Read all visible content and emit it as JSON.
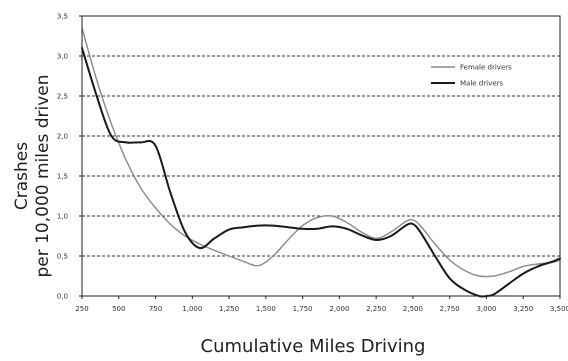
{
  "chart_data": {
    "type": "line",
    "title": "",
    "xlabel": "Cumulative Miles Driving",
    "ylabel_line1": "Crashes",
    "ylabel_line2": "per 10,000 miles driven",
    "xlim": [
      250,
      3500
    ],
    "ylim": [
      0,
      3.5
    ],
    "x_ticks": [
      250,
      500,
      750,
      1000,
      1250,
      1500,
      1750,
      2000,
      2250,
      2500,
      2750,
      3000,
      3250,
      3500
    ],
    "x_tick_labels": [
      "250",
      "500",
      "750",
      "1,000",
      "1,250",
      "1,500",
      "1,750",
      "2,000",
      "2,250",
      "2,500",
      "2,750",
      "3,000",
      "3,250",
      "3,500"
    ],
    "y_ticks": [
      0,
      0.5,
      1.0,
      1.5,
      2.0,
      2.5,
      3.0,
      3.5
    ],
    "y_tick_labels": [
      "0,0",
      "0,5",
      "1,0",
      "1,5",
      "2,0",
      "2,5",
      "3,0",
      "3,5"
    ],
    "grid": "horizontal dashed",
    "legend_position": "top-right",
    "series": [
      {
        "name": "Female drivers",
        "color": "#8a8a8a",
        "width": 1.4,
        "x": [
          250,
          350,
          450,
          550,
          650,
          750,
          850,
          950,
          1050,
          1150,
          1250,
          1350,
          1450,
          1550,
          1650,
          1750,
          1850,
          1950,
          2050,
          2150,
          2250,
          2350,
          2450,
          2500,
          2550,
          2650,
          2750,
          2850,
          2950,
          3050,
          3150,
          3250,
          3350,
          3450,
          3500
        ],
        "values": [
          3.35,
          2.7,
          2.15,
          1.7,
          1.35,
          1.1,
          0.9,
          0.75,
          0.65,
          0.57,
          0.5,
          0.43,
          0.38,
          0.5,
          0.7,
          0.88,
          0.98,
          1.0,
          0.92,
          0.8,
          0.72,
          0.8,
          0.93,
          0.95,
          0.88,
          0.65,
          0.45,
          0.32,
          0.25,
          0.25,
          0.3,
          0.37,
          0.4,
          0.42,
          0.45
        ]
      },
      {
        "name": "Male drivers",
        "color": "#1a1a1a",
        "width": 2.0,
        "x": [
          250,
          350,
          450,
          550,
          650,
          750,
          850,
          950,
          1050,
          1150,
          1250,
          1350,
          1450,
          1550,
          1650,
          1750,
          1850,
          1950,
          2050,
          2150,
          2250,
          2350,
          2450,
          2500,
          2550,
          2650,
          2750,
          2850,
          2950,
          3000,
          3050,
          3150,
          3250,
          3350,
          3450,
          3500
        ],
        "values": [
          3.1,
          2.5,
          2.0,
          1.92,
          1.92,
          1.88,
          1.3,
          0.8,
          0.6,
          0.72,
          0.83,
          0.86,
          0.88,
          0.88,
          0.86,
          0.84,
          0.84,
          0.87,
          0.84,
          0.76,
          0.7,
          0.75,
          0.88,
          0.9,
          0.8,
          0.5,
          0.22,
          0.08,
          0.0,
          0.0,
          0.02,
          0.15,
          0.28,
          0.37,
          0.43,
          0.47
        ]
      }
    ]
  }
}
